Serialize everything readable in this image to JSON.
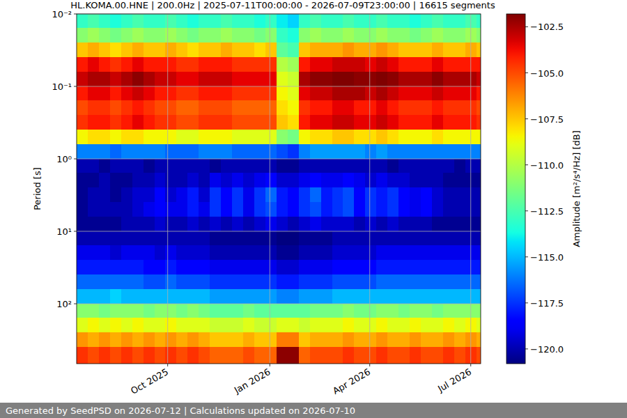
{
  "chart_data": {
    "type": "heatmap",
    "title": "HL.KOMA.00.HNE | 200.0Hz | 2025-07-11T00:00:00 - 2026-07-09T23:00:00 | 16615 segments",
    "y_label": "Period [s]",
    "footer": "Generated by SeedPSD on 2026-07-12 | Calculations updated on 2026-07-10",
    "log": "y",
    "grid": true,
    "xlim": [
      "2025-07-11T00:00",
      "2026-07-09T23:00"
    ],
    "xticks": [
      {
        "value": "2025-10-01",
        "label": "Oct 2025"
      },
      {
        "value": "2026-01-01",
        "label": "Jan 2026"
      },
      {
        "value": "2026-04-01",
        "label": "Apr 2026"
      },
      {
        "value": "2026-07-01",
        "label": "Jul 2026"
      }
    ],
    "ylim": [
      671,
      0.01
    ],
    "yticks": [
      {
        "value": 0.01,
        "label": "10⁻²"
      },
      {
        "value": 0.1,
        "label": "10⁻¹"
      },
      {
        "value": 1,
        "label": "10⁰"
      },
      {
        "value": 10,
        "label": "10¹"
      },
      {
        "value": 100,
        "label": "10²"
      }
    ],
    "colorbar": {
      "label": "Amplitude [m²/s⁴/Hz] [dB]",
      "lim": [
        -120.8,
        -101.8
      ],
      "ticks": [
        {
          "value": -102.5,
          "label": "−102.5"
        },
        {
          "value": -105,
          "label": "−105.0"
        },
        {
          "value": -107.5,
          "label": "−107.5"
        },
        {
          "value": -110,
          "label": "−110.0"
        },
        {
          "value": -112.5,
          "label": "−112.5"
        },
        {
          "value": -115,
          "label": "−115.0"
        },
        {
          "value": -117.5,
          "label": "−117.5"
        },
        {
          "value": -120,
          "label": "−120.0"
        }
      ]
    },
    "x_edges": [
      "2025-07-11T00:00",
      "2025-07-21T00:00",
      "2025-07-31T00:00",
      "2025-08-10T00:00",
      "2025-08-20T00:00",
      "2025-08-30T00:00",
      "2025-09-09T00:00",
      "2025-09-19T00:00",
      "2025-09-29T00:00",
      "2025-10-09T00:00",
      "2025-10-19T00:00",
      "2025-10-29T00:00",
      "2025-11-08T00:00",
      "2025-11-18T00:00",
      "2025-11-28T00:00",
      "2025-12-08T00:00",
      "2025-12-18T00:00",
      "2025-12-28T00:00",
      "2026-01-07T00:00",
      "2026-01-17T00:00",
      "2026-01-27T00:00",
      "2026-02-06T00:00",
      "2026-02-16T00:00",
      "2026-02-26T00:00",
      "2026-03-08T00:00",
      "2026-03-18T00:00",
      "2026-03-28T00:00",
      "2026-04-07T00:00",
      "2026-04-17T00:00",
      "2026-04-27T00:00",
      "2026-05-07T00:00",
      "2026-05-17T00:00",
      "2026-05-27T00:00",
      "2026-06-06T00:00",
      "2026-06-16T00:00",
      "2026-06-26T00:00",
      "2026-07-06T00:00",
      "2026-07-09T23:00"
    ],
    "y_edges": [
      0.01,
      0.0158,
      0.0251,
      0.0398,
      0.0631,
      0.1,
      0.158,
      0.251,
      0.398,
      0.631,
      1,
      1.58,
      2.51,
      3.98,
      6.31,
      10,
      15.8,
      25.1,
      39.8,
      63.1,
      100,
      158,
      251,
      398,
      671
    ],
    "cells": [
      [
        -113,
        -112.5,
        -113,
        -113.5,
        -113,
        -112.5,
        -113,
        -113,
        -112.5,
        -113,
        -113.5,
        -113,
        -113,
        -112.5,
        -113,
        -113,
        -113.5,
        -113,
        -114,
        -114.5,
        -113,
        -112.5,
        -113,
        -113,
        -112.5,
        -113,
        -113,
        -112.5,
        -113,
        -113,
        -113.5,
        -113,
        -112.5,
        -113,
        -113,
        -112.5,
        -113
      ],
      [
        -111,
        -110.5,
        -111,
        -111.5,
        -111,
        -110.5,
        -111,
        -111,
        -110.5,
        -111,
        -111.5,
        -111,
        -111,
        -110.5,
        -111,
        -111,
        -111.5,
        -111,
        -113,
        -113.5,
        -111,
        -110.5,
        -111,
        -111,
        -110.5,
        -111,
        -111,
        -110.5,
        -111,
        -111,
        -111.5,
        -111,
        -110.5,
        -111,
        -111,
        -110.5,
        -111
      ],
      [
        -107.5,
        -107,
        -107.5,
        -108,
        -107.5,
        -107,
        -107.5,
        -107.5,
        -107,
        -107.5,
        -108,
        -107.5,
        -107.5,
        -107,
        -107.5,
        -107.5,
        -108,
        -107.5,
        -112,
        -112.5,
        -107.5,
        -107,
        -107,
        -107,
        -106.5,
        -107,
        -107,
        -106.5,
        -107,
        -107.5,
        -107.5,
        -107.5,
        -107,
        -107.5,
        -107.5,
        -107,
        -107.5
      ],
      [
        -104,
        -103.5,
        -104,
        -104.5,
        -104,
        -103.5,
        -104,
        -104,
        -104,
        -104.5,
        -104.5,
        -104,
        -104,
        -104,
        -104.5,
        -104.5,
        -104.5,
        -104.5,
        -110,
        -110.5,
        -104,
        -103.5,
        -103.5,
        -103,
        -103,
        -103,
        -103.5,
        -103,
        -103.5,
        -104,
        -104,
        -104,
        -103.5,
        -104,
        -104,
        -104,
        -104
      ],
      [
        -103,
        -102.5,
        -102.5,
        -103,
        -102.5,
        -102,
        -102.5,
        -103,
        -103,
        -103.5,
        -103.5,
        -103,
        -103,
        -103,
        -103.5,
        -103.5,
        -103.5,
        -103.5,
        -109,
        -109.5,
        -102.5,
        -102,
        -102,
        -101.8,
        -101.8,
        -102,
        -102,
        -101.8,
        -102,
        -102.5,
        -102.5,
        -102.5,
        -102,
        -102.5,
        -102.5,
        -102.5,
        -103
      ],
      [
        -104,
        -103.5,
        -103.5,
        -104,
        -103.5,
        -103,
        -103.5,
        -104,
        -104,
        -104.5,
        -104.5,
        -104,
        -104,
        -104,
        -104.5,
        -104.5,
        -104.5,
        -104.5,
        -108.5,
        -109,
        -103.5,
        -103,
        -103,
        -102.5,
        -102.5,
        -102.5,
        -103,
        -102.5,
        -103,
        -103.5,
        -103.5,
        -103.5,
        -103,
        -103.5,
        -103.5,
        -103.5,
        -104
      ],
      [
        -105,
        -104.5,
        -104.5,
        -105,
        -104.5,
        -104,
        -104.5,
        -105,
        -105,
        -105.5,
        -105.5,
        -105,
        -105,
        -105,
        -105.5,
        -105.5,
        -105.5,
        -105.5,
        -108,
        -108.5,
        -104.5,
        -104,
        -104,
        -103.5,
        -103.5,
        -104,
        -104,
        -103.5,
        -104,
        -104.5,
        -104.5,
        -104.5,
        -104,
        -104.5,
        -104.5,
        -104.5,
        -105
      ],
      [
        -104.5,
        -104,
        -104,
        -104.5,
        -104,
        -103.5,
        -104,
        -104.5,
        -104.5,
        -105,
        -105,
        -104.5,
        -104.5,
        -104.5,
        -105,
        -105,
        -105,
        -105,
        -107.5,
        -108,
        -104,
        -103.5,
        -103.5,
        -103,
        -103,
        -103.5,
        -103.5,
        -103,
        -103.5,
        -104,
        -104,
        -104,
        -103.5,
        -104,
        -104,
        -104,
        -104.5
      ],
      [
        -108.5,
        -108,
        -108,
        -108.5,
        -108,
        -108,
        -108.5,
        -108.5,
        -108.5,
        -109,
        -109,
        -108.5,
        -108.5,
        -108.5,
        -109,
        -109,
        -109,
        -109,
        -111,
        -111.5,
        -108.5,
        -108,
        -108,
        -107.5,
        -107.5,
        -108,
        -108,
        -107.5,
        -108,
        -108.5,
        -108.5,
        -108.5,
        -108,
        -108.5,
        -108.5,
        -108.5,
        -108.5
      ],
      [
        -116,
        -116,
        -116,
        -116.5,
        -116,
        -116,
        -116,
        -116,
        -116.5,
        -116.5,
        -116.5,
        -116,
        -116,
        -116,
        -116.5,
        -116.5,
        -116.5,
        -116.5,
        -117,
        -117.5,
        -116,
        -115.5,
        -115.5,
        -115.5,
        -115.5,
        -115.5,
        -116,
        -115.5,
        -116,
        -116,
        -116,
        -116,
        -116,
        -116,
        -116,
        -116,
        -116
      ],
      [
        -120,
        -120,
        -120.5,
        -120,
        -120,
        -120,
        -120.5,
        -120,
        -120,
        -120,
        -120,
        -120,
        -120.5,
        -120,
        -120,
        -120,
        -120,
        -120,
        -120.5,
        -120.5,
        -120,
        -120,
        -120,
        -120,
        -120,
        -120,
        -120,
        -120,
        -120.5,
        -120,
        -120,
        -120,
        -120,
        -120,
        -120.5,
        -120,
        -120
      ],
      [
        -120.5,
        -120.5,
        -120,
        -120.5,
        -120.5,
        -120,
        -120,
        -119.5,
        -120,
        -120,
        -119.5,
        -120,
        -119,
        -119.5,
        -119,
        -119.5,
        -119,
        -118.5,
        -119.5,
        -119.5,
        -119,
        -118.5,
        -119,
        -119,
        -118.5,
        -119,
        -119.5,
        -119,
        -119.5,
        -119.5,
        -120,
        -120,
        -120,
        -120.5,
        -120.5,
        -120.5,
        -120.5
      ],
      [
        -120.5,
        -120,
        -120,
        -120.5,
        -120,
        -119.5,
        -119.5,
        -118.5,
        -119.5,
        -119,
        -118,
        -119.5,
        -117.5,
        -118.5,
        -117.5,
        -119,
        -117.5,
        -116.5,
        -118,
        -118.5,
        -117.5,
        -116.5,
        -118,
        -117.5,
        -117,
        -118.5,
        -117.5,
        -118,
        -117.5,
        -118.5,
        -119,
        -118.5,
        -119.5,
        -120,
        -120,
        -120,
        -120
      ],
      [
        -120.5,
        -120,
        -120,
        -120,
        -120,
        -119.5,
        -119,
        -118.5,
        -119,
        -119,
        -118,
        -119,
        -117.5,
        -118.5,
        -117.5,
        -119,
        -117.5,
        -117,
        -118,
        -118.5,
        -117.5,
        -117,
        -118,
        -117.5,
        -117,
        -118.5,
        -117.5,
        -118,
        -117.5,
        -118.5,
        -119,
        -118.5,
        -119.5,
        -120,
        -120,
        -120,
        -120
      ],
      [
        -120.5,
        -120.5,
        -120.5,
        -120.5,
        -120,
        -120,
        -120,
        -119.5,
        -120,
        -120,
        -119.5,
        -120,
        -119.5,
        -120,
        -119.5,
        -120,
        -119.5,
        -119,
        -119.5,
        -120,
        -119.5,
        -119,
        -119.5,
        -119.5,
        -119.5,
        -120,
        -119.5,
        -120,
        -119.5,
        -120,
        -120,
        -120,
        -120.5,
        -120.5,
        -120.5,
        -120.5,
        -120.5
      ],
      [
        -120,
        -120,
        -120,
        -120,
        -120,
        -120,
        -120,
        -120,
        -120,
        -120,
        -120,
        -120,
        -120.5,
        -120.5,
        -120.5,
        -120.5,
        -120.5,
        -120.5,
        -121,
        -121,
        -120.5,
        -120.5,
        -120.5,
        -120,
        -120,
        -120,
        -120,
        -120,
        -120,
        -120,
        -120,
        -120,
        -120,
        -120,
        -120,
        -120,
        -120
      ],
      [
        -119,
        -119,
        -119,
        -119.5,
        -119,
        -119,
        -119,
        -119.5,
        -119,
        -119.5,
        -119.5,
        -119.5,
        -120,
        -120,
        -120,
        -120,
        -120,
        -120,
        -120.5,
        -120.5,
        -120,
        -120,
        -120,
        -119.5,
        -119.5,
        -119.5,
        -119.5,
        -119,
        -119,
        -119,
        -119,
        -119,
        -119,
        -119,
        -119,
        -119,
        -119
      ],
      [
        -118,
        -118,
        -118,
        -118,
        -118,
        -118,
        -118.5,
        -118.5,
        -118,
        -118.5,
        -118.5,
        -118.5,
        -119,
        -119,
        -119,
        -119,
        -119,
        -119,
        -119.5,
        -119.5,
        -119,
        -119,
        -119,
        -118.5,
        -118.5,
        -118.5,
        -118.5,
        -118,
        -118,
        -118,
        -118,
        -118,
        -118,
        -118,
        -118,
        -118,
        -118
      ],
      [
        -116.5,
        -116.5,
        -116.5,
        -116.5,
        -116.5,
        -116.5,
        -117,
        -117,
        -116.5,
        -117,
        -117,
        -117,
        -117.5,
        -117.5,
        -117.5,
        -117.5,
        -117.5,
        -117.5,
        -118,
        -118,
        -117.5,
        -117.5,
        -117.5,
        -117,
        -117,
        -117,
        -117,
        -116.5,
        -116.5,
        -116.5,
        -116.5,
        -116.5,
        -116.5,
        -116.5,
        -116.5,
        -116.5,
        -116.5
      ],
      [
        -115,
        -115,
        -115,
        -114.5,
        -115,
        -115,
        -115,
        -115,
        -115,
        -115,
        -115,
        -115,
        -115.5,
        -115.5,
        -115.5,
        -115.5,
        -115.5,
        -115.5,
        -116,
        -116,
        -115.5,
        -115.5,
        -115.5,
        -115,
        -115,
        -115,
        -115,
        -115,
        -115,
        -115,
        -115,
        -115,
        -115,
        -115,
        -115,
        -115,
        -115
      ],
      [
        -111,
        -111,
        -111.5,
        -111,
        -111,
        -111,
        -111.5,
        -111,
        -111,
        -111.5,
        -111,
        -111.5,
        -112,
        -112,
        -112,
        -111.5,
        -112,
        -112,
        -112,
        -112,
        -112,
        -111.5,
        -111.5,
        -111.5,
        -111,
        -111.5,
        -111.5,
        -111,
        -111,
        -111.5,
        -111,
        -111,
        -111.5,
        -111,
        -111,
        -111,
        -111
      ],
      [
        -109,
        -108.5,
        -109,
        -108.5,
        -109,
        -108.5,
        -109,
        -109,
        -108.5,
        -109,
        -109,
        -109,
        -109.5,
        -109.5,
        -109.5,
        -109,
        -109.5,
        -109.5,
        -109,
        -109,
        -109.5,
        -109,
        -109,
        -109,
        -108.5,
        -109,
        -109,
        -108.5,
        -109,
        -109,
        -108.5,
        -109,
        -109,
        -108.5,
        -109,
        -108.5,
        -109
      ],
      [
        -106.5,
        -107,
        -106.5,
        -107,
        -106.5,
        -107,
        -106.5,
        -107,
        -106.5,
        -107,
        -106.5,
        -107,
        -107.5,
        -107.5,
        -107.5,
        -107,
        -107.5,
        -107.5,
        -106,
        -106,
        -107.5,
        -107,
        -107,
        -107,
        -106.5,
        -107,
        -107,
        -106.5,
        -107,
        -107,
        -106.5,
        -107,
        -107,
        -106.5,
        -107,
        -106.5,
        -107
      ],
      [
        -104.5,
        -105,
        -104.5,
        -105,
        -104.5,
        -105,
        -104.5,
        -105,
        -104.5,
        -105,
        -104.5,
        -105,
        -105.5,
        -105.5,
        -105.5,
        -105,
        -105.5,
        -105.5,
        -102,
        -102,
        -105.5,
        -105,
        -105,
        -105,
        -104.5,
        -105,
        -105,
        -104.5,
        -105,
        -105,
        -104.5,
        -105,
        -105,
        -104.5,
        -105,
        -104.5,
        -105
      ]
    ]
  }
}
